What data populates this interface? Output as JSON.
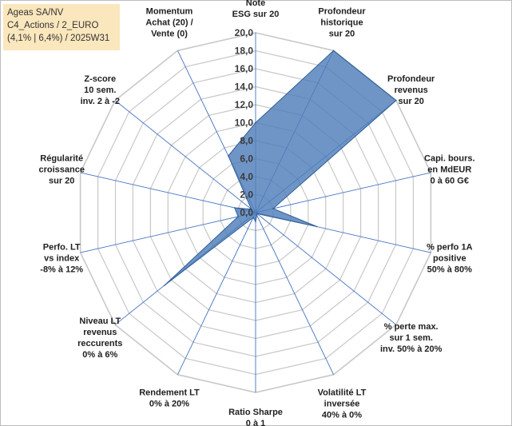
{
  "info_box": {
    "line1": "Ageas SA/NV",
    "line2": "C4_Actions / 2_EURO",
    "line3": "(4,1% | 6,4%) / 2025W31"
  },
  "colors": {
    "fill": "#4f7eb9",
    "stroke": "#2f5f96",
    "grid": "#c8c8c8",
    "spoke": "#4472c4",
    "info_bg": "#fbe7bd"
  },
  "chart_data": {
    "type": "radar",
    "title": "",
    "rmin": 0,
    "rmax": 20,
    "tick_labels": [
      "0,0",
      "2,0",
      "4,0",
      "6,0",
      "8,0",
      "10,0",
      "12,0",
      "14,0",
      "16,0",
      "18,0",
      "20,0"
    ],
    "axes": [
      {
        "label": [
          "Note",
          "ESG sur 20"
        ],
        "value": 10
      },
      {
        "label": [
          "Profondeur",
          "historique",
          "sur 20"
        ],
        "value": 20
      },
      {
        "label": [
          "Profondeur",
          "revenus",
          "sur 20"
        ],
        "value": 20
      },
      {
        "label": [
          "Capi. bours.",
          "en MdEUR",
          "0 à 60 G€"
        ],
        "value": 2
      },
      {
        "label": [
          "% perfo 1A",
          "positive",
          "50% à 80%"
        ],
        "value": 7
      },
      {
        "label": [
          "% perte max.",
          "sur 1 sem.",
          "inv. 50% à 20%"
        ],
        "value": 0.2
      },
      {
        "label": [
          "Volatilité LT",
          "inversée",
          "40% à 0%"
        ],
        "value": 0.3
      },
      {
        "label": [
          "Ratio Sharpe",
          "0 à 1"
        ],
        "value": 1
      },
      {
        "label": [
          "Rendement LT",
          "0% à 20%"
        ],
        "value": 0.6
      },
      {
        "label": [
          "Niveau LT",
          "revenus",
          "reccurents",
          "0% à 6%"
        ],
        "value": 13
      },
      {
        "label": [
          "Perfo. LT",
          "vs index",
          "-8% à 12%"
        ],
        "value": 2
      },
      {
        "label": [
          "Régularité",
          "croissance",
          "sur 20"
        ],
        "value": 2.4
      },
      {
        "label": [
          "Z-score",
          "10 sem.",
          "inv. 2 à -2"
        ],
        "value": 0.6
      },
      {
        "label": [
          "Momentum",
          "Achat (20) /",
          "Vente (0)"
        ],
        "value": 7
      }
    ]
  }
}
